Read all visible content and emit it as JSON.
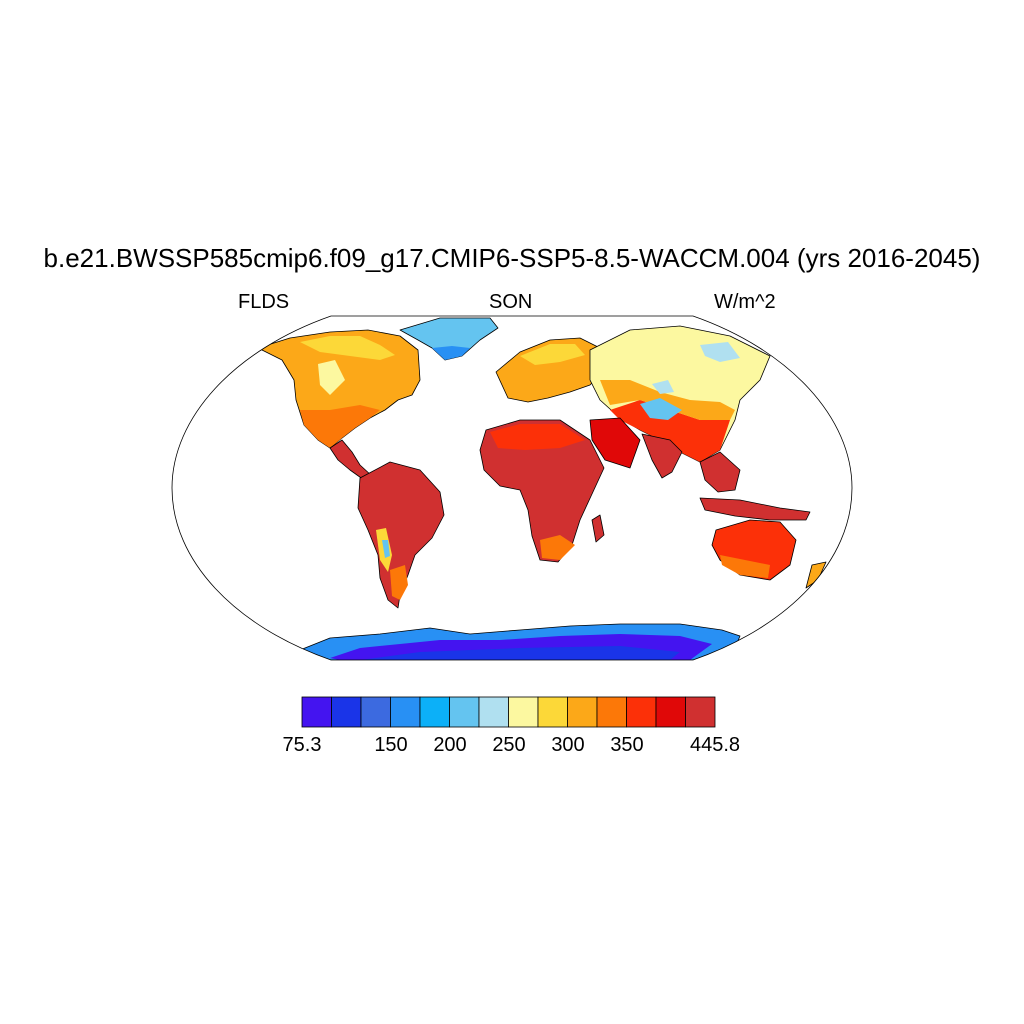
{
  "figure": {
    "title": "b.e21.BWSSP585cmip6.f09_g17.CMIP6-SSP5-8.5-WACCM.004 (yrs 2016-2045)",
    "left_label": "FLDS",
    "center_label": "SON",
    "right_label": "W/m^2"
  },
  "colorbar": {
    "colors": [
      "#4414f0",
      "#1a34e8",
      "#3c6ae0",
      "#2890f4",
      "#0cb0f8",
      "#64c4f0",
      "#b0e0f0",
      "#fcf8a0",
      "#fcd838",
      "#fca818",
      "#fc7808",
      "#fc3008",
      "#e00808",
      "#d03030"
    ],
    "labels": [
      {
        "text": "75.3",
        "index": 0
      },
      {
        "text": "150",
        "index": 2
      },
      {
        "text": "200",
        "index": 3
      },
      {
        "text": "250",
        "index": 4
      },
      {
        "text": "300",
        "index": 5
      },
      {
        "text": "350",
        "index": 6
      },
      {
        "text": "445.8",
        "index": 7
      }
    ]
  },
  "map": {
    "projection": "Robinson",
    "regions": [
      {
        "name": "north-america",
        "level": "orange"
      },
      {
        "name": "central-america",
        "level": "dark-red"
      },
      {
        "name": "south-america",
        "level": "dark-red"
      },
      {
        "name": "greenland",
        "level": "light-blue"
      },
      {
        "name": "europe",
        "level": "orange"
      },
      {
        "name": "asia",
        "level": "light-yellow"
      },
      {
        "name": "africa",
        "level": "dark-red"
      },
      {
        "name": "india",
        "level": "dark-red"
      },
      {
        "name": "australia",
        "level": "red"
      },
      {
        "name": "antarctica",
        "level": "blue-violet"
      }
    ]
  }
}
